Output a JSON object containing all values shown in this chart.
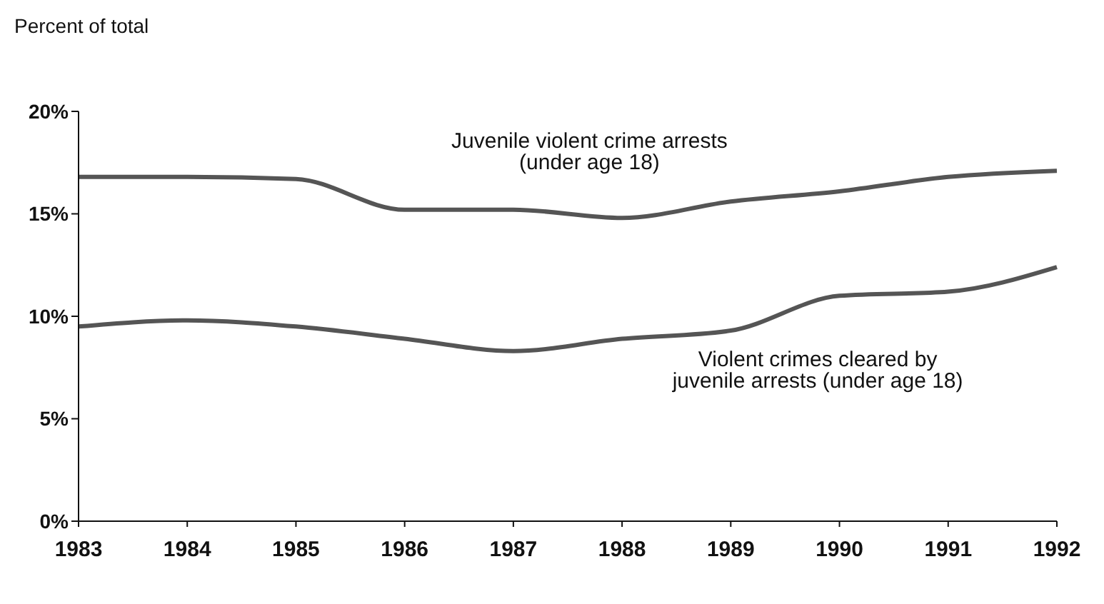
{
  "chart_data": {
    "type": "line",
    "ylabel": "Percent of total",
    "categories": [
      "1983",
      "1984",
      "1985",
      "1986",
      "1987",
      "1988",
      "1989",
      "1990",
      "1991",
      "1992"
    ],
    "series": [
      {
        "name": "Juvenile violent crime arrests (under age 18)",
        "color": "#555555",
        "values": [
          16.8,
          16.8,
          16.7,
          15.2,
          15.2,
          14.8,
          15.6,
          16.1,
          16.8,
          17.1
        ]
      },
      {
        "name": "Violent crimes cleared by juvenile arrests (under age 18)",
        "color": "#555555",
        "values": [
          9.5,
          9.8,
          9.5,
          8.9,
          8.3,
          8.9,
          9.3,
          11.0,
          11.2,
          12.4
        ]
      }
    ],
    "ylim": [
      0,
      20
    ],
    "yticks": [
      {
        "value": 0,
        "label": "0%"
      },
      {
        "value": 5,
        "label": "5%"
      },
      {
        "value": 10,
        "label": "10%"
      },
      {
        "value": 15,
        "label": "15%"
      },
      {
        "value": 20,
        "label": "20%"
      }
    ],
    "grid": false,
    "legend": false,
    "marker": "none",
    "line_style": "solid"
  }
}
